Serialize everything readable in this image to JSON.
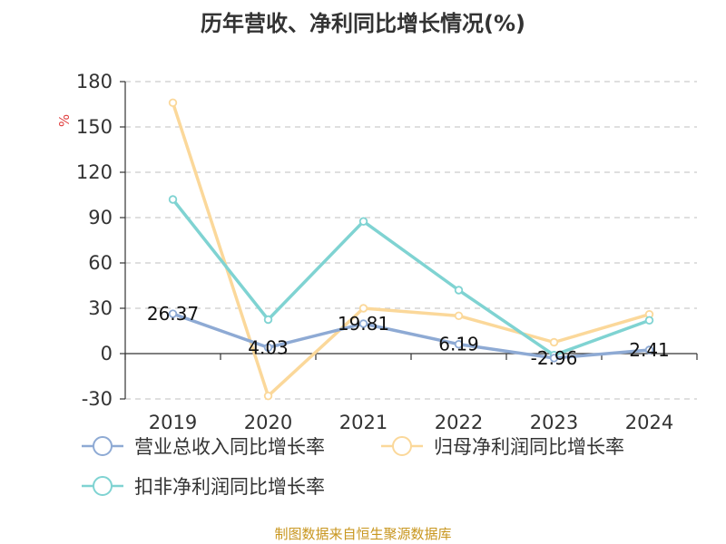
{
  "chart_data": {
    "type": "line",
    "title": "历年营收、净利同比增长情况(%)",
    "ylabel": "%",
    "categories": [
      "2019",
      "2020",
      "2021",
      "2022",
      "2023",
      "2024"
    ],
    "ylim": [
      -30,
      180
    ],
    "yticks": [
      -30,
      0,
      30,
      60,
      90,
      120,
      150,
      180
    ],
    "grid": true,
    "legend_position": "bottom",
    "series": [
      {
        "name": "营业总收入同比增长率",
        "color": "#8eaad4",
        "values": [
          26.37,
          4.03,
          19.81,
          6.19,
          -2.96,
          2.41
        ],
        "labels": [
          "26.37",
          "4.03",
          "19.81",
          "6.19",
          "-2.96",
          "2.41"
        ]
      },
      {
        "name": "归母净利润同比增长率",
        "color": "#fbd89a",
        "values": [
          166,
          -28,
          30,
          25,
          7.5,
          26
        ]
      },
      {
        "name": "扣非净利润同比增长率",
        "color": "#7fd3d2",
        "values": [
          102,
          22.5,
          87.5,
          42,
          -1,
          22
        ]
      }
    ]
  },
  "footer": {
    "source": "制图数据来自恒生聚源数据库"
  }
}
